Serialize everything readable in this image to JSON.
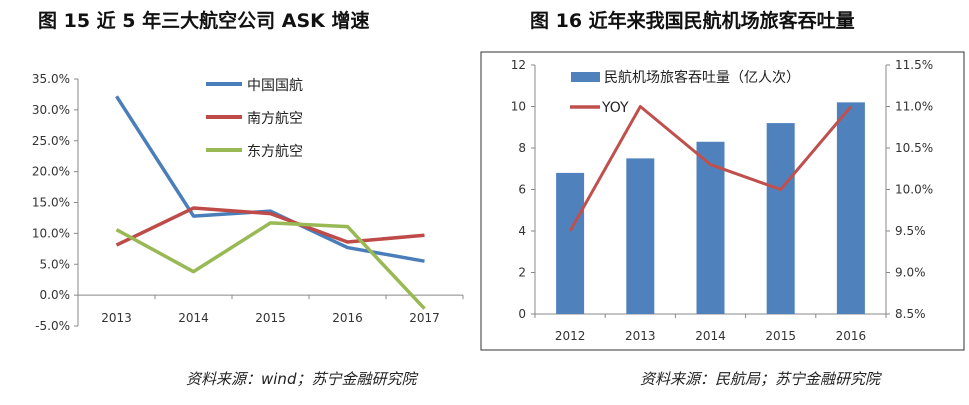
{
  "left": {
    "title": "图 15 近 5 年三大航空公司 ASK 增速",
    "source": "资料来源：wind；苏宁金融研究院"
  },
  "right": {
    "title": "图 16 近年来我国民航机场旅客吞吐量",
    "source": "资料来源：民航局；苏宁金融研究院"
  },
  "chart_data": [
    {
      "type": "line",
      "categories": [
        "2013",
        "2014",
        "2015",
        "2016",
        "2017"
      ],
      "ylim": [
        -0.05,
        0.35
      ],
      "yticks": [
        "-5.0%",
        "0.0%",
        "5.0%",
        "10.0%",
        "15.0%",
        "20.0%",
        "25.0%",
        "30.0%",
        "35.0%"
      ],
      "legend_position": "top-center",
      "grid": false,
      "series": [
        {
          "name": "中国国航",
          "color": "#4a7ebb",
          "values": [
            0.322,
            0.128,
            0.136,
            0.077,
            0.055
          ]
        },
        {
          "name": "南方航空",
          "color": "#be4b48",
          "values": [
            0.081,
            0.141,
            0.132,
            0.086,
            0.097
          ]
        },
        {
          "name": "东方航空",
          "color": "#98b954",
          "values": [
            0.106,
            0.038,
            0.117,
            0.111,
            -0.022
          ]
        }
      ]
    },
    {
      "type": "bar+line",
      "categories": [
        "2012",
        "2013",
        "2014",
        "2015",
        "2016"
      ],
      "ylim": [
        0,
        12
      ],
      "yticks": [
        "0",
        "2",
        "4",
        "6",
        "8",
        "10",
        "12"
      ],
      "y2lim": [
        0.085,
        0.115
      ],
      "y2ticks": [
        "8.5%",
        "9.0%",
        "9.5%",
        "10.0%",
        "10.5%",
        "11.0%",
        "11.5%"
      ],
      "legend_position": "top-left",
      "grid": false,
      "series": [
        {
          "name": "民航机场旅客吞吐量（亿人次）",
          "kind": "bar",
          "axis": "left",
          "color": "#4f81bd",
          "values": [
            6.8,
            7.5,
            8.3,
            9.2,
            10.2
          ]
        },
        {
          "name": "YOY",
          "kind": "line",
          "axis": "right",
          "color": "#c0504d",
          "values": [
            0.095,
            0.11,
            0.103,
            0.1,
            0.11
          ]
        }
      ]
    }
  ]
}
